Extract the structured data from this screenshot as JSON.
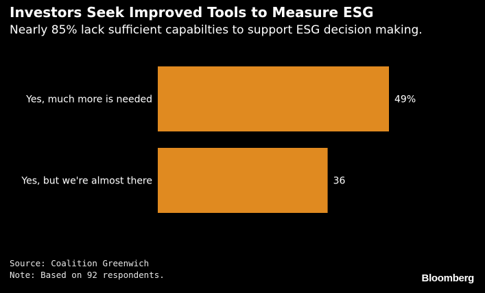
{
  "header": {
    "title": "Investors Seek Improved Tools to Measure ESG",
    "subtitle": "Nearly 85% lack sufficient capabilties to support ESG decision making."
  },
  "chart_data": {
    "type": "bar",
    "orientation": "horizontal",
    "categories": [
      "Yes, much more is needed",
      "Yes, but we're almost there"
    ],
    "values": [
      49,
      36
    ],
    "value_labels": [
      "49%",
      "36"
    ],
    "bar_color": "#E08A20",
    "xlim": [
      0,
      60
    ],
    "grid": false
  },
  "footer": {
    "source": "Source: Coalition Greenwich",
    "note": "Note: Based on 92 respondents."
  },
  "brand": {
    "logo_text": "Bloomberg"
  },
  "colors": {
    "background": "#000000",
    "text": "#FFFFFF",
    "bar": "#E08A20"
  }
}
